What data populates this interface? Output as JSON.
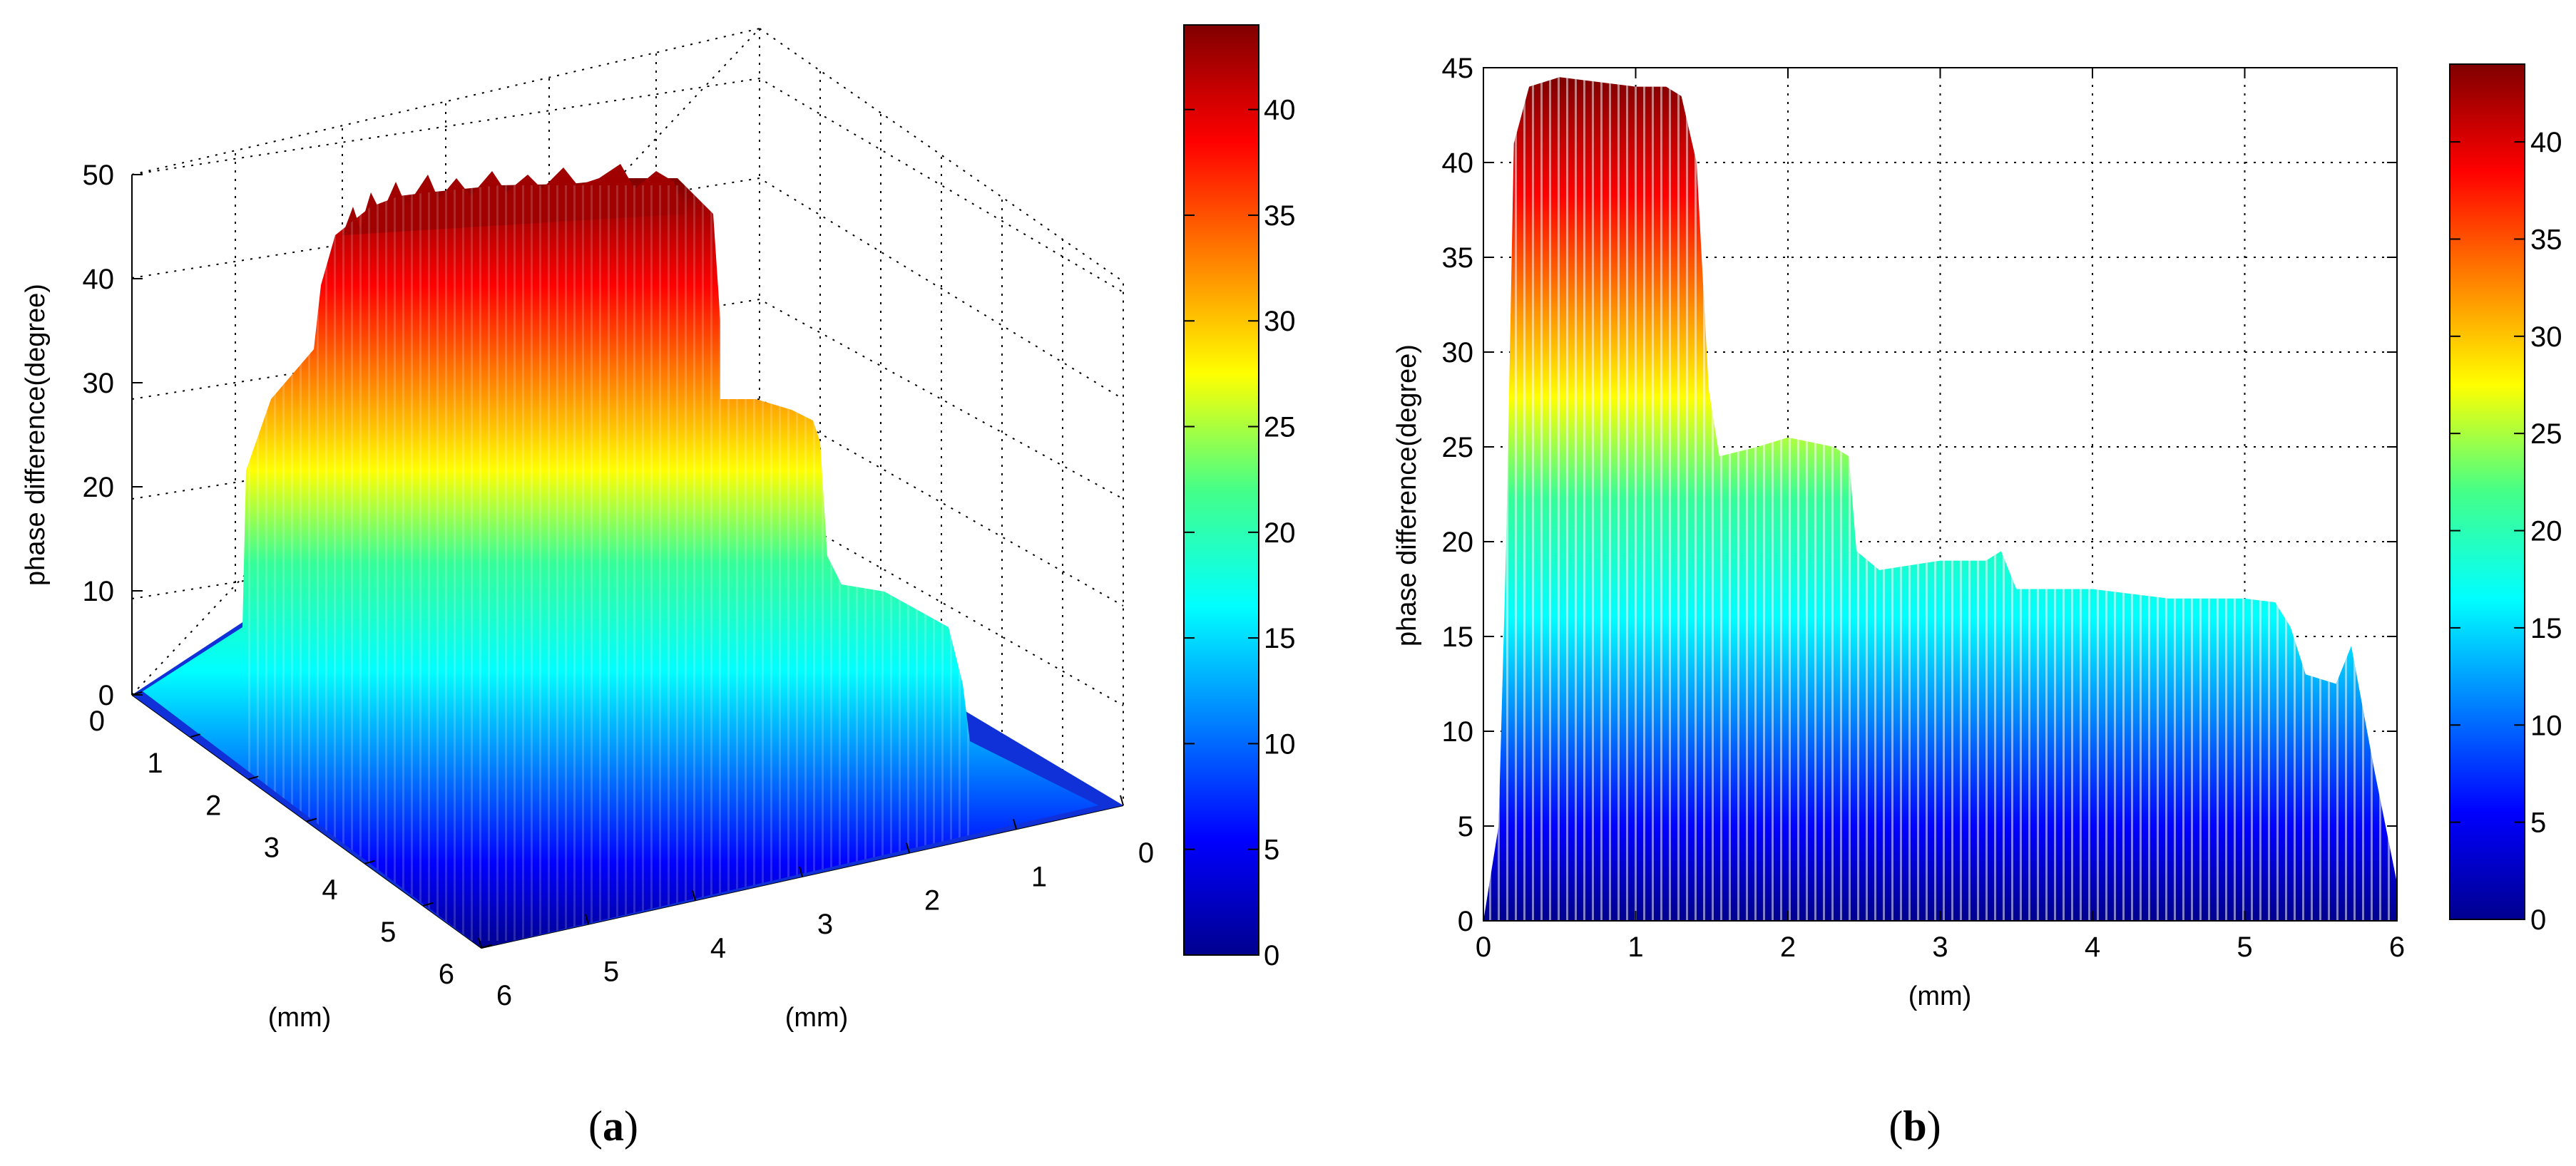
{
  "chart_data": [
    {
      "type": "surface",
      "panel_label": "a",
      "zlabel": "phase difference(degree)",
      "xlabel": "(mm)",
      "ylabel": "(mm)",
      "x_ticks": [
        "0",
        "1",
        "2",
        "3",
        "4",
        "5",
        "6"
      ],
      "y_ticks": [
        "0",
        "1",
        "2",
        "3",
        "4",
        "5",
        "6"
      ],
      "z_ticks": [
        "0",
        "10",
        "20",
        "30",
        "40",
        "50"
      ],
      "xlim": [
        0,
        6
      ],
      "ylim": [
        0,
        6
      ],
      "zlim": [
        0,
        50
      ],
      "colormap": "jet",
      "colorbar": {
        "ticks": [
          "0",
          "5",
          "10",
          "15",
          "20",
          "25",
          "30",
          "35",
          "40"
        ],
        "range": [
          0,
          44
        ]
      },
      "surface_profile": {
        "x": [
          0,
          0.15,
          0.3,
          1.0,
          1.45,
          1.6,
          2.2,
          2.4,
          2.6,
          3.3,
          3.5,
          5.2,
          5.4,
          5.65,
          5.9,
          6.0
        ],
        "z": [
          0,
          0,
          42,
          44,
          44,
          25,
          24,
          24,
          19,
          19,
          17,
          17,
          13,
          14,
          5,
          0
        ]
      }
    },
    {
      "type": "area",
      "panel_label": "b",
      "xlabel": "(mm)",
      "ylabel": "phase difference(degree)",
      "x_ticks": [
        "0",
        "1",
        "2",
        "3",
        "4",
        "5",
        "6"
      ],
      "y_ticks": [
        "0",
        "5",
        "10",
        "15",
        "20",
        "25",
        "30",
        "35",
        "40",
        "45"
      ],
      "xlim": [
        0,
        6
      ],
      "ylim": [
        0,
        45
      ],
      "grid": true,
      "colormap": "jet",
      "colorbar": {
        "ticks": [
          "0",
          "5",
          "10",
          "15",
          "20",
          "25",
          "30",
          "35",
          "40"
        ],
        "range": [
          0,
          44
        ]
      },
      "x": [
        0,
        0.1,
        0.15,
        0.2,
        0.3,
        0.5,
        0.8,
        1.0,
        1.2,
        1.3,
        1.4,
        1.48,
        1.55,
        1.8,
        2.0,
        2.3,
        2.4,
        2.45,
        2.6,
        3.0,
        3.3,
        3.4,
        3.5,
        4.0,
        4.5,
        5.0,
        5.2,
        5.3,
        5.4,
        5.6,
        5.7,
        5.85,
        6.0
      ],
      "y": [
        0,
        5,
        20,
        41,
        44,
        44.5,
        44.2,
        44,
        44,
        43.5,
        40,
        28,
        24.5,
        25,
        25.5,
        25,
        24.5,
        19.5,
        18.5,
        19,
        19,
        19.5,
        17.5,
        17.5,
        17,
        17,
        16.8,
        15.5,
        13,
        12.5,
        14.5,
        8,
        2
      ]
    }
  ]
}
